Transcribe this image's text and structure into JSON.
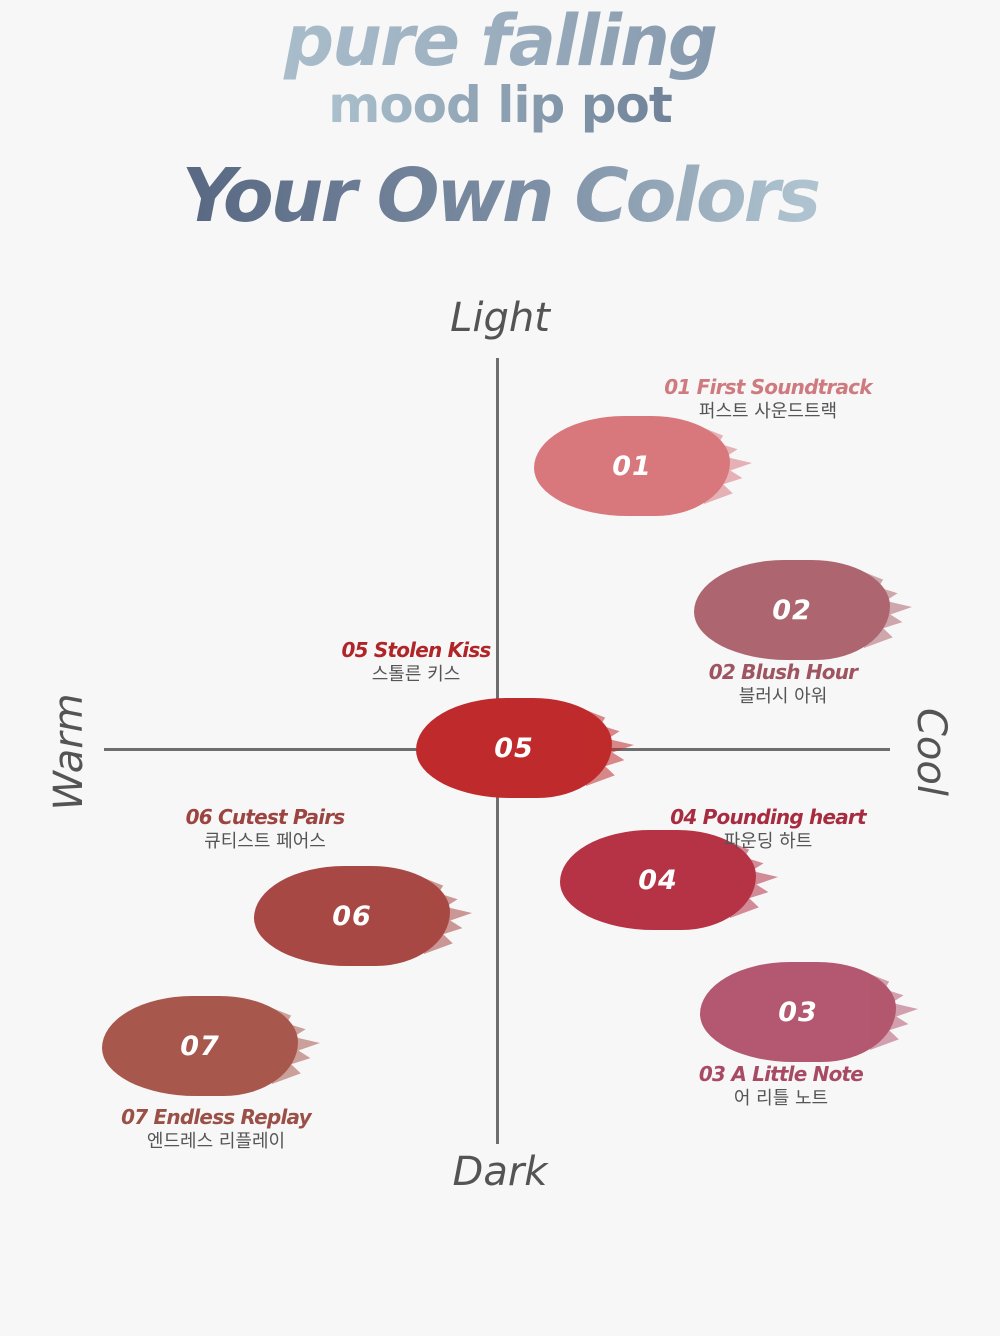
{
  "header": {
    "line1": "pure falling",
    "line2": "mood lip pot",
    "line3": "Your Own Colors"
  },
  "axes": {
    "top": "Light",
    "bottom": "Dark",
    "left": "Warm",
    "right": "Cool"
  },
  "colors": {
    "axis_line": "#6e6e6e",
    "axis_text": "#545454",
    "korean_text": "#555555"
  },
  "shades": [
    {
      "number": "01",
      "name_en": "01 First Soundtrack",
      "name_ko": "퍼스트 사운드트랙",
      "swatch_color": "#d9787c",
      "label_color": "#cf7a7e"
    },
    {
      "number": "02",
      "name_en": "02 Blush Hour",
      "name_ko": "블러시 아워",
      "swatch_color": "#ad6670",
      "label_color": "#9e5560"
    },
    {
      "number": "03",
      "name_en": "03 A Little Note",
      "name_ko": "어 리틀 노트",
      "swatch_color": "#b35870",
      "label_color": "#a84a63"
    },
    {
      "number": "04",
      "name_en": "04 Pounding heart",
      "name_ko": "파운딩 하트",
      "swatch_color": "#b53345",
      "label_color": "#a82c40"
    },
    {
      "number": "05",
      "name_en": "05 Stolen Kiss",
      "name_ko": "스톨른 키스",
      "swatch_color": "#bf2b2c",
      "label_color": "#b02528"
    },
    {
      "number": "06",
      "name_en": "06 Cutest Pairs",
      "name_ko": "큐티스트 페어스",
      "swatch_color": "#a84844",
      "label_color": "#9c4540"
    },
    {
      "number": "07",
      "name_en": "07 Endless Replay",
      "name_ko": "엔드레스 리플레이",
      "swatch_color": "#a8574c",
      "label_color": "#9a5046"
    }
  ]
}
